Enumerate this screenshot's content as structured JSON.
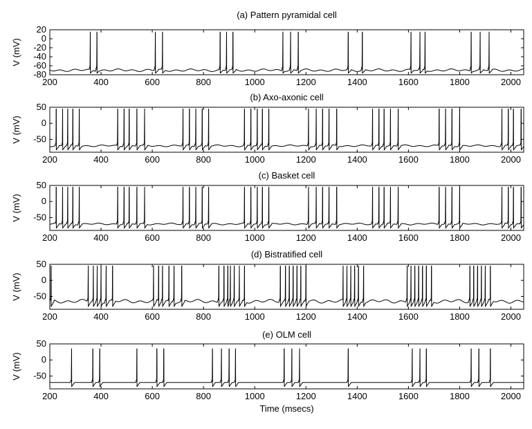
{
  "chart_data": [
    {
      "type": "line",
      "title": "(a) Pattern pyramidal cell",
      "ylabel": "V (mV)",
      "xlabel": "",
      "xlim": [
        200,
        2050
      ],
      "ylim": [
        -80,
        20
      ],
      "xticks": [
        200,
        400,
        600,
        800,
        1000,
        1200,
        1400,
        1600,
        1800,
        2000
      ],
      "yticks": [
        20,
        0,
        -20,
        -40,
        -60,
        -80
      ],
      "resting_mV": -70,
      "spike_peak_mV": 15,
      "spike_times": [
        358,
        384,
        612,
        640,
        865,
        890,
        915,
        1110,
        1140,
        1170,
        1365,
        1420,
        1610,
        1645,
        1665,
        1845,
        1880,
        1915
      ]
    },
    {
      "type": "line",
      "title": "(b) Axo-axonic cell",
      "ylabel": "V (mV)",
      "xlabel": "",
      "xlim": [
        200,
        2050
      ],
      "ylim": [
        -90,
        50
      ],
      "xticks": [
        200,
        400,
        600,
        800,
        1000,
        1200,
        1400,
        1600,
        1800,
        2000
      ],
      "yticks": [
        50,
        0,
        -50
      ],
      "resting_mV": -70,
      "spike_peak_mV": 45,
      "spike_times": [
        225,
        250,
        270,
        290,
        315,
        465,
        490,
        510,
        540,
        570,
        720,
        745,
        770,
        795,
        820,
        960,
        985,
        1010,
        1030,
        1055,
        1210,
        1240,
        1265,
        1290,
        1320,
        1460,
        1485,
        1505,
        1530,
        1560,
        1720,
        1745,
        1770,
        1800,
        1965,
        1990,
        2010,
        2040
      ]
    },
    {
      "type": "line",
      "title": "(c) Basket cell",
      "ylabel": "V (mV)",
      "xlabel": "",
      "xlim": [
        200,
        2050
      ],
      "ylim": [
        -90,
        50
      ],
      "xticks": [
        200,
        400,
        600,
        800,
        1000,
        1200,
        1400,
        1600,
        1800,
        2000
      ],
      "yticks": [
        50,
        0,
        -50
      ],
      "resting_mV": -70,
      "spike_peak_mV": 45,
      "spike_times": [
        225,
        250,
        270,
        290,
        315,
        465,
        490,
        510,
        540,
        570,
        720,
        745,
        770,
        795,
        820,
        960,
        985,
        1010,
        1030,
        1055,
        1210,
        1240,
        1265,
        1290,
        1320,
        1460,
        1485,
        1505,
        1530,
        1560,
        1720,
        1745,
        1770,
        1800,
        1965,
        1990,
        2010,
        2040
      ]
    },
    {
      "type": "line",
      "title": "(d) Bistratified cell",
      "ylabel": "V (mV)",
      "xlabel": "",
      "xlim": [
        200,
        2050
      ],
      "ylim": [
        -90,
        50
      ],
      "xticks": [
        200,
        400,
        600,
        800,
        1000,
        1200,
        1400,
        1600,
        1800,
        2000
      ],
      "yticks": [
        50,
        0,
        -50
      ],
      "resting_mV": -65,
      "spike_peak_mV": 45,
      "spike_times": [
        205,
        350,
        370,
        385,
        400,
        420,
        445,
        605,
        625,
        640,
        665,
        685,
        715,
        860,
        880,
        895,
        905,
        920,
        940,
        960,
        1100,
        1120,
        1135,
        1150,
        1165,
        1180,
        1200,
        1345,
        1360,
        1375,
        1390,
        1405,
        1425,
        1595,
        1610,
        1625,
        1640,
        1655,
        1670,
        1690,
        1840,
        1855,
        1870,
        1885,
        1900,
        1920
      ]
    },
    {
      "type": "line",
      "title": "(e) OLM cell",
      "ylabel": "V (mV)",
      "xlabel": "Time (msecs)",
      "xlim": [
        200,
        2050
      ],
      "ylim": [
        -90,
        50
      ],
      "xticks": [
        200,
        400,
        600,
        800,
        1000,
        1200,
        1400,
        1600,
        1800,
        2000
      ],
      "yticks": [
        50,
        0,
        -50
      ],
      "resting_mV": -70,
      "spike_peak_mV": 35,
      "spike_times": [
        285,
        368,
        395,
        540,
        618,
        645,
        835,
        870,
        900,
        925,
        1115,
        1145,
        1175,
        1365,
        1615,
        1645,
        1670,
        1845,
        1875,
        1920
      ]
    }
  ]
}
